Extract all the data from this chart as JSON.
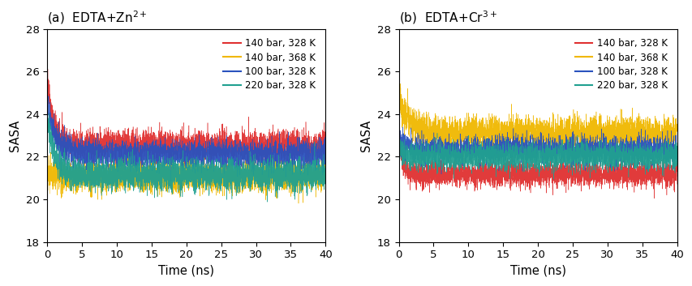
{
  "title_a": "(a)  EDTA+Zn",
  "title_a_super": "2+",
  "title_b": "(b)  EDTA+Cr",
  "title_b_super": "3+",
  "xlabel": "Time (ns)",
  "ylabel": "SASA",
  "xlim": [
    0,
    40
  ],
  "ylim": [
    18,
    28
  ],
  "yticks": [
    18,
    20,
    22,
    24,
    26,
    28
  ],
  "xticks": [
    0,
    5,
    10,
    15,
    20,
    25,
    30,
    35,
    40
  ],
  "n_points": 4000,
  "panel_a": {
    "series": [
      {
        "mean_start": 25.8,
        "mean_end": 22.5,
        "noise": 0.35,
        "decay": 0.8,
        "color": "#e03030",
        "label": "140 bar, 328 K"
      },
      {
        "mean_start": 21.4,
        "mean_end": 21.1,
        "noise": 0.35,
        "decay": 0.5,
        "color": "#f0b800",
        "label": "140 bar, 368 K"
      },
      {
        "mean_start": 24.5,
        "mean_end": 22.1,
        "noise": 0.32,
        "decay": 1.2,
        "color": "#2a52be",
        "label": "100 bar, 328 K"
      },
      {
        "mean_start": 23.8,
        "mean_end": 21.15,
        "noise": 0.35,
        "decay": 1.0,
        "color": "#20a090",
        "label": "220 bar, 328 K"
      }
    ]
  },
  "panel_b": {
    "series": [
      {
        "mean_start": 23.0,
        "mean_end": 21.2,
        "noise": 0.3,
        "decay": 0.5,
        "color": "#e03030",
        "label": "140 bar, 328 K"
      },
      {
        "mean_start": 24.8,
        "mean_end": 23.1,
        "noise": 0.38,
        "decay": 1.5,
        "color": "#f0b800",
        "label": "140 bar, 368 K"
      },
      {
        "mean_start": 22.8,
        "mean_end": 22.3,
        "noise": 0.32,
        "decay": 1.0,
        "color": "#2a52be",
        "label": "100 bar, 328 K"
      },
      {
        "mean_start": 22.4,
        "mean_end": 22.0,
        "noise": 0.3,
        "decay": 0.8,
        "color": "#20a090",
        "label": "220 bar, 328 K"
      }
    ]
  },
  "figsize": [
    8.54,
    3.53
  ],
  "dpi": 100
}
